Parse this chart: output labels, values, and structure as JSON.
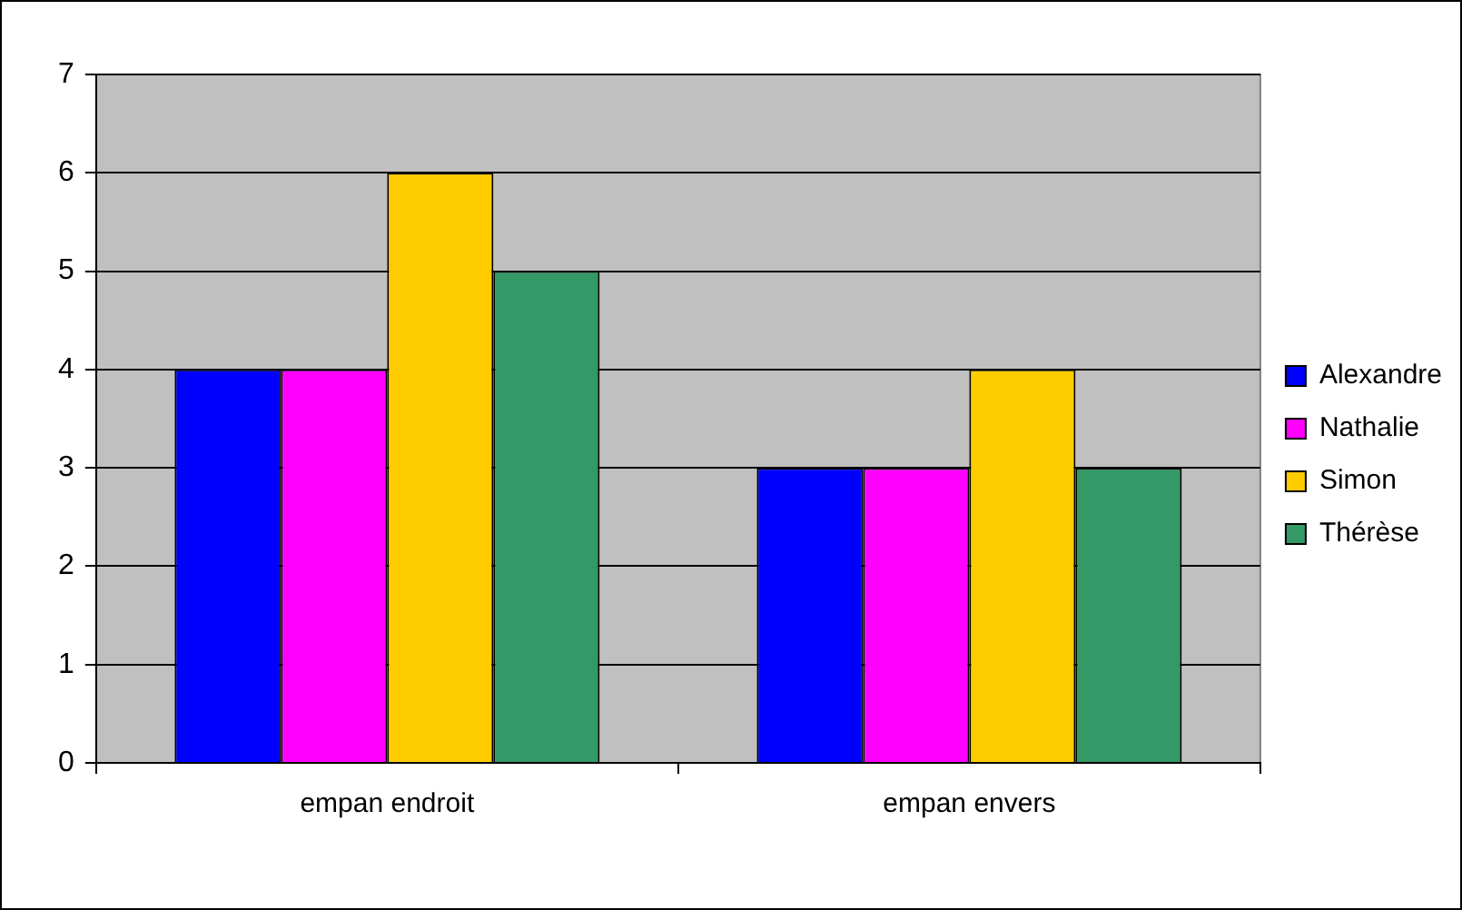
{
  "chart_data": {
    "type": "bar",
    "categories": [
      "empan endroit",
      "empan envers"
    ],
    "series": [
      {
        "name": "Alexandre",
        "color": "#0000ff",
        "values": [
          4,
          3
        ]
      },
      {
        "name": "Nathalie",
        "color": "#ff00ff",
        "values": [
          4,
          3
        ]
      },
      {
        "name": "Simon",
        "color": "#ffcc00",
        "values": [
          6,
          4
        ]
      },
      {
        "name": "Thérèse",
        "color": "#339966",
        "values": [
          5,
          3
        ]
      }
    ],
    "ylim": [
      0,
      7
    ],
    "yticks": [
      0,
      1,
      2,
      3,
      4,
      5,
      6,
      7
    ],
    "grid": "y",
    "legend": "right"
  }
}
